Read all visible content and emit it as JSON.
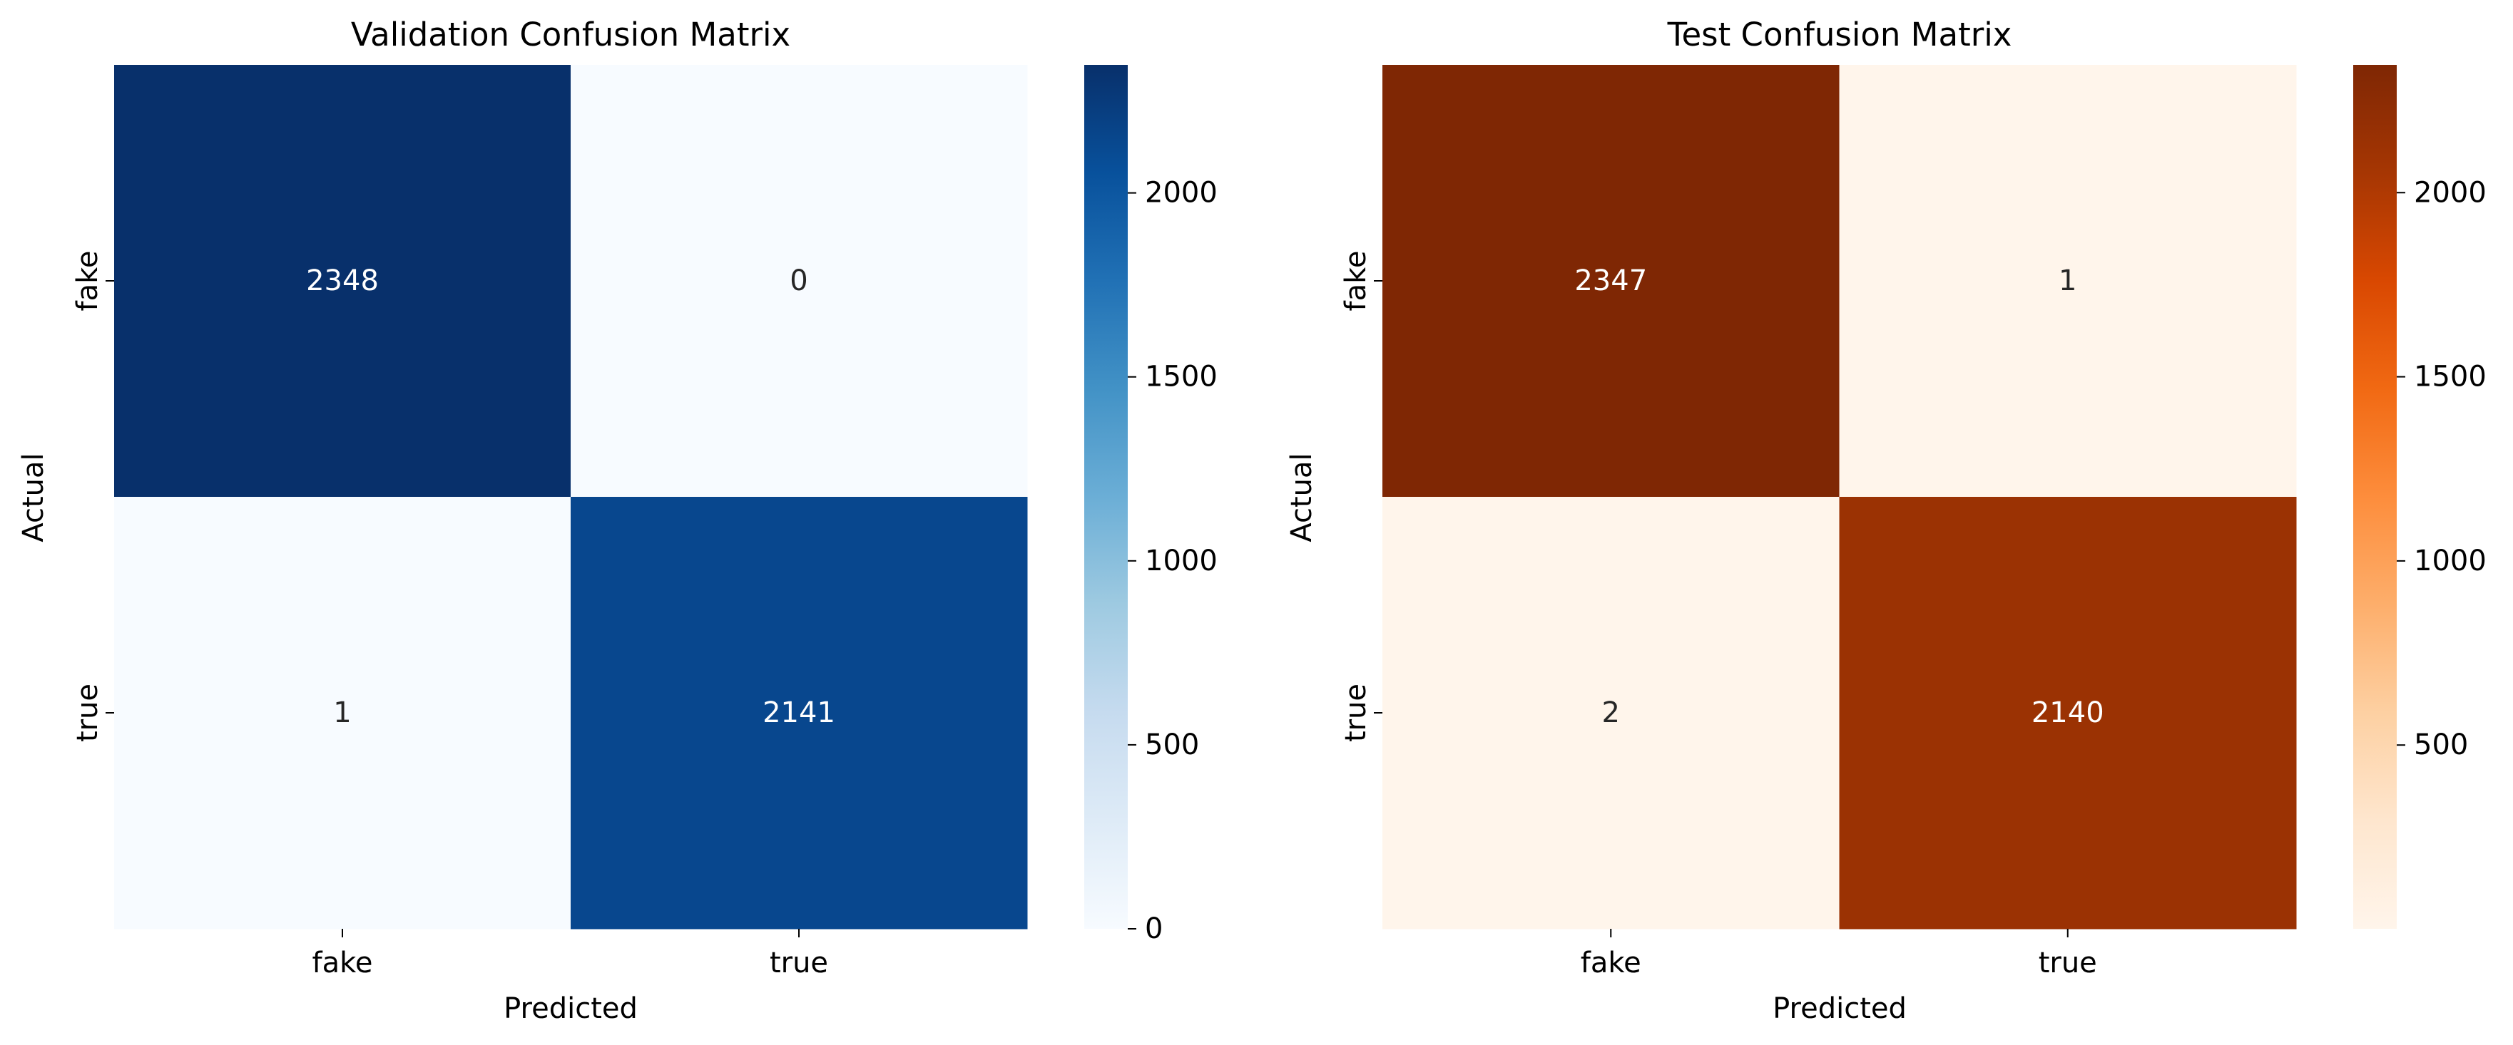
{
  "chart_data": [
    {
      "type": "heatmap",
      "title": "Validation Confusion Matrix",
      "xlabel": "Predicted",
      "ylabel": "Actual",
      "x_categories": [
        "fake",
        "true"
      ],
      "y_categories": [
        "fake",
        "true"
      ],
      "values": [
        [
          2348,
          0
        ],
        [
          1,
          2141
        ]
      ],
      "colormap": "Blues",
      "colorbar": {
        "range": [
          0,
          2348
        ],
        "ticks": [
          0,
          500,
          1000,
          1500,
          2000
        ],
        "tick_labels": [
          "0",
          "500",
          "1000",
          "1500",
          "2000"
        ]
      },
      "colors": [
        "#f7fbff",
        "#deebf7",
        "#c6dbef",
        "#9ecae1",
        "#6baed6",
        "#4292c6",
        "#2171b5",
        "#08519c",
        "#08306b"
      ]
    },
    {
      "type": "heatmap",
      "title": "Test Confusion Matrix",
      "xlabel": "Predicted",
      "ylabel": "Actual",
      "x_categories": [
        "fake",
        "true"
      ],
      "y_categories": [
        "fake",
        "true"
      ],
      "values": [
        [
          2347,
          1
        ],
        [
          2,
          2140
        ]
      ],
      "colormap": "Oranges",
      "colorbar": {
        "range": [
          1,
          2347
        ],
        "ticks": [
          500,
          1000,
          1500,
          2000
        ],
        "tick_labels": [
          "500",
          "1000",
          "1500",
          "2000"
        ]
      },
      "colors": [
        "#fff5eb",
        "#fee6ce",
        "#fdd0a2",
        "#fdae6b",
        "#fd8d3c",
        "#f16913",
        "#d94801",
        "#a63603",
        "#7f2704"
      ]
    }
  ]
}
